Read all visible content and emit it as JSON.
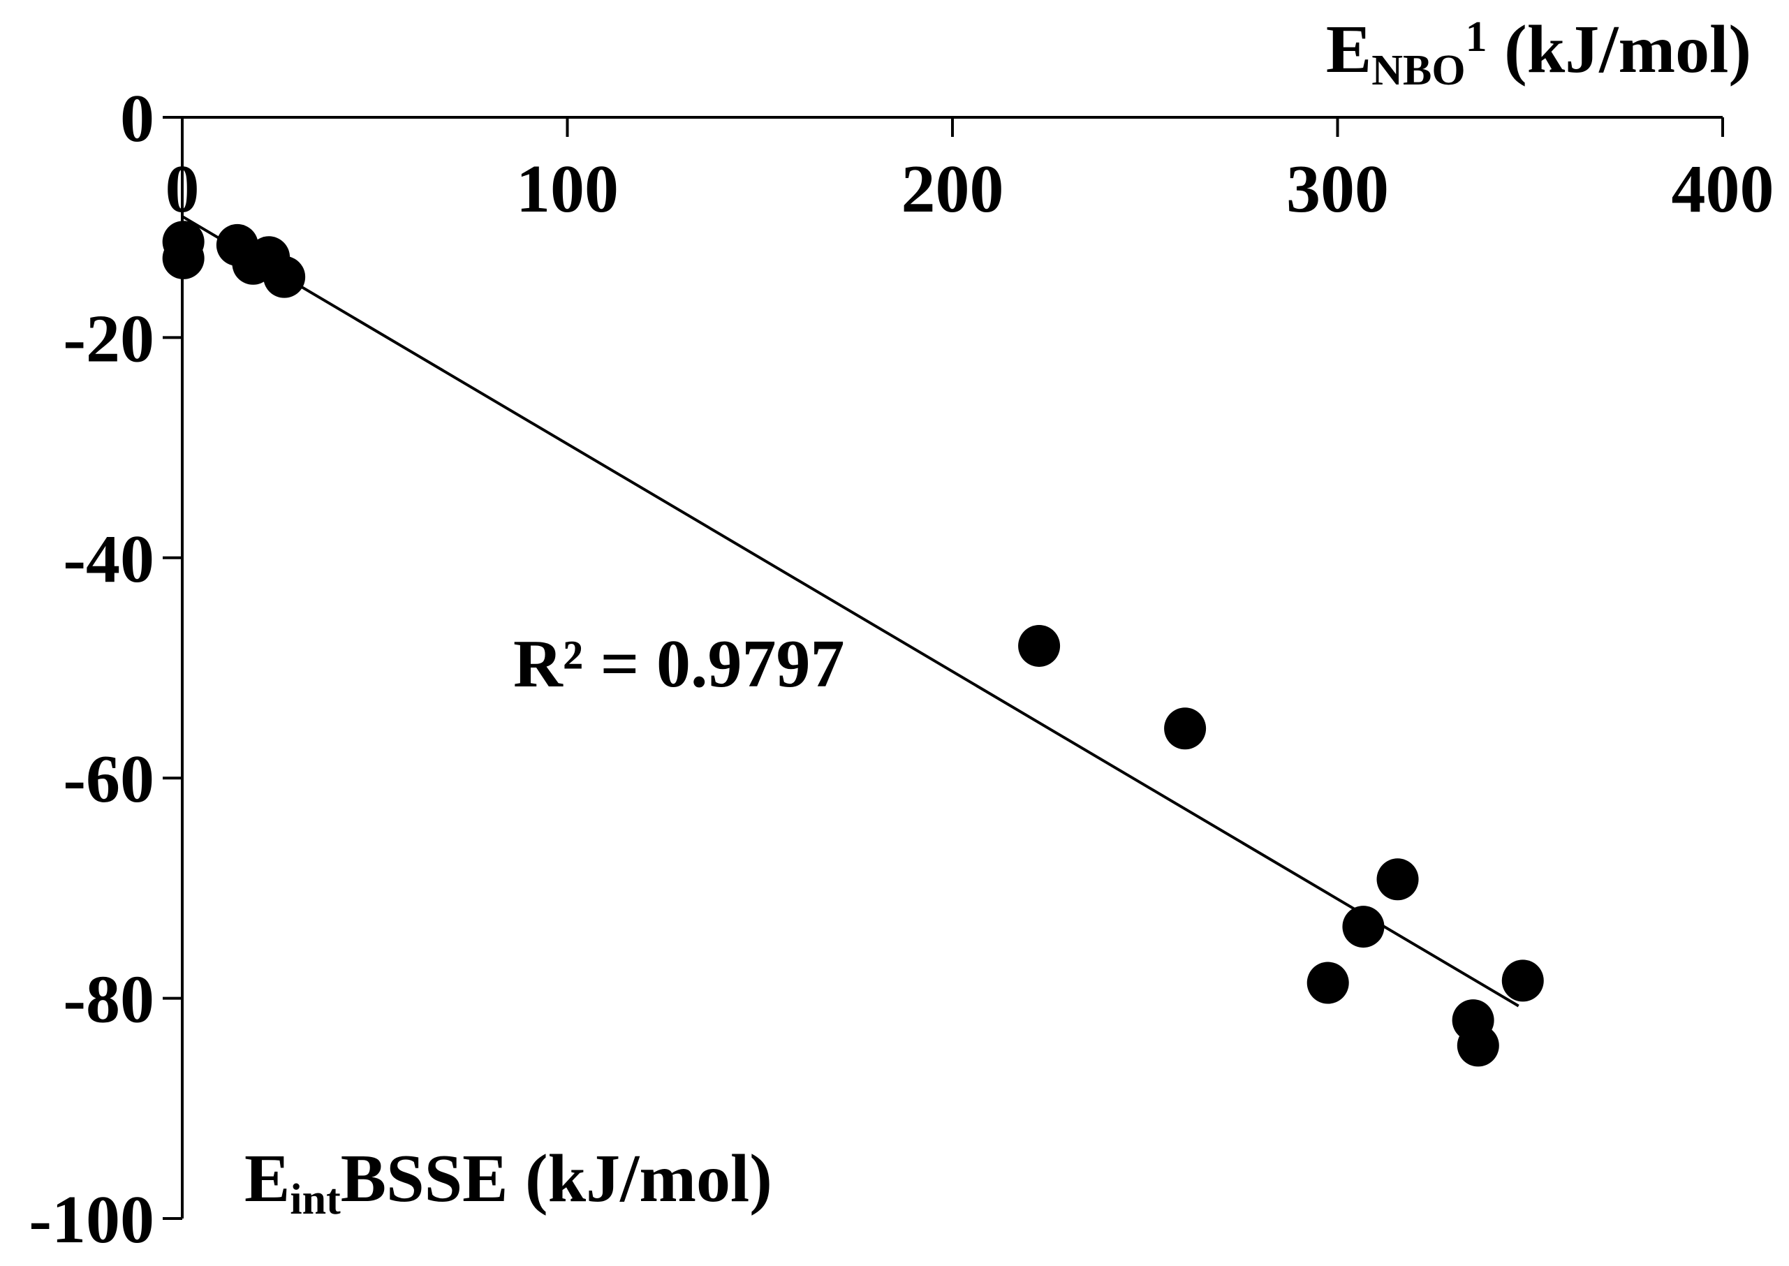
{
  "chart_data": {
    "type": "scatter",
    "title": "",
    "xlabel": {
      "main": "E",
      "sub": "NBO",
      "sup": "1",
      "rest": " (kJ/mol)"
    },
    "ylabel": {
      "main": "E",
      "sub": "int",
      "rest": "BSSE (kJ/mol)"
    },
    "xlim": [
      0,
      400
    ],
    "ylim": [
      -100,
      0
    ],
    "x_axis_position": "top",
    "xticks": [
      0,
      100,
      200,
      300,
      400
    ],
    "xtick_labels": [
      "0",
      "100",
      "200",
      "300",
      "400"
    ],
    "yticks": [
      0,
      -20,
      -40,
      -60,
      -80,
      -100
    ],
    "ytick_labels": [
      "0",
      "-20",
      "-40",
      "-60",
      "-80",
      "-100"
    ],
    "grid": false,
    "legend": "none",
    "marker_color": "#000000",
    "series": [
      {
        "name": "data",
        "points": [
          {
            "x": 0.3,
            "y": -11.3
          },
          {
            "x": 0.3,
            "y": -12.8
          },
          {
            "x": 14.3,
            "y": -11.6
          },
          {
            "x": 18.4,
            "y": -13.3
          },
          {
            "x": 22.5,
            "y": -12.7
          },
          {
            "x": 26.5,
            "y": -14.5
          },
          {
            "x": 222.5,
            "y": -48.0
          },
          {
            "x": 260.4,
            "y": -55.5
          },
          {
            "x": 297.5,
            "y": -78.6
          },
          {
            "x": 306.7,
            "y": -73.5
          },
          {
            "x": 315.6,
            "y": -69.2
          },
          {
            "x": 335.2,
            "y": -82.0
          },
          {
            "x": 336.5,
            "y": -84.3
          },
          {
            "x": 348.1,
            "y": -78.4
          }
        ]
      }
    ],
    "trendline": {
      "type": "linear",
      "x_range": [
        0,
        347
      ],
      "y_at_start": -9.0,
      "y_at_end": -80.7,
      "r_squared_label": "R² = 0.9797"
    }
  }
}
